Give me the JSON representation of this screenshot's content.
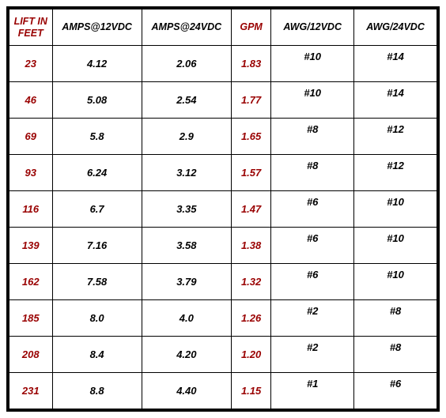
{
  "headers": {
    "lift": "LIFT IN FEET",
    "amps12": "AMPS@12VDC",
    "amps24": "AMPS@24VDC",
    "gpm": "GPM",
    "awg12": "AWG/12VDC",
    "awg24": "AWG/24VDC"
  },
  "rows": [
    {
      "lift": "23",
      "amps12": "4.12",
      "amps24": "2.06",
      "gpm": "1.83",
      "awg12": "#10",
      "awg24": "#14"
    },
    {
      "lift": "46",
      "amps12": "5.08",
      "amps24": "2.54",
      "gpm": "1.77",
      "awg12": "#10",
      "awg24": "#14"
    },
    {
      "lift": "69",
      "amps12": "5.8",
      "amps24": "2.9",
      "gpm": "1.65",
      "awg12": "#8",
      "awg24": "#12"
    },
    {
      "lift": "93",
      "amps12": "6.24",
      "amps24": "3.12",
      "gpm": "1.57",
      "awg12": "#8",
      "awg24": "#12"
    },
    {
      "lift": "116",
      "amps12": "6.7",
      "amps24": "3.35",
      "gpm": "1.47",
      "awg12": "#6",
      "awg24": "#10"
    },
    {
      "lift": "139",
      "amps12": "7.16",
      "amps24": "3.58",
      "gpm": "1.38",
      "awg12": "#6",
      "awg24": "#10"
    },
    {
      "lift": "162",
      "amps12": "7.58",
      "amps24": "3.79",
      "gpm": "1.32",
      "awg12": "#6",
      "awg24": "#10"
    },
    {
      "lift": "185",
      "amps12": "8.0",
      "amps24": "4.0",
      "gpm": "1.26",
      "awg12": "#2",
      "awg24": "#8"
    },
    {
      "lift": "208",
      "amps12": "8.4",
      "amps24": "4.20",
      "gpm": "1.20",
      "awg12": "#2",
      "awg24": "#8"
    },
    {
      "lift": "231",
      "amps12": "8.8",
      "amps24": "4.40",
      "gpm": "1.15",
      "awg12": "#1",
      "awg24": "#6"
    }
  ],
  "colors": {
    "red": "#990000",
    "black": "#000000",
    "border": "#000000",
    "background": "#ffffff"
  }
}
